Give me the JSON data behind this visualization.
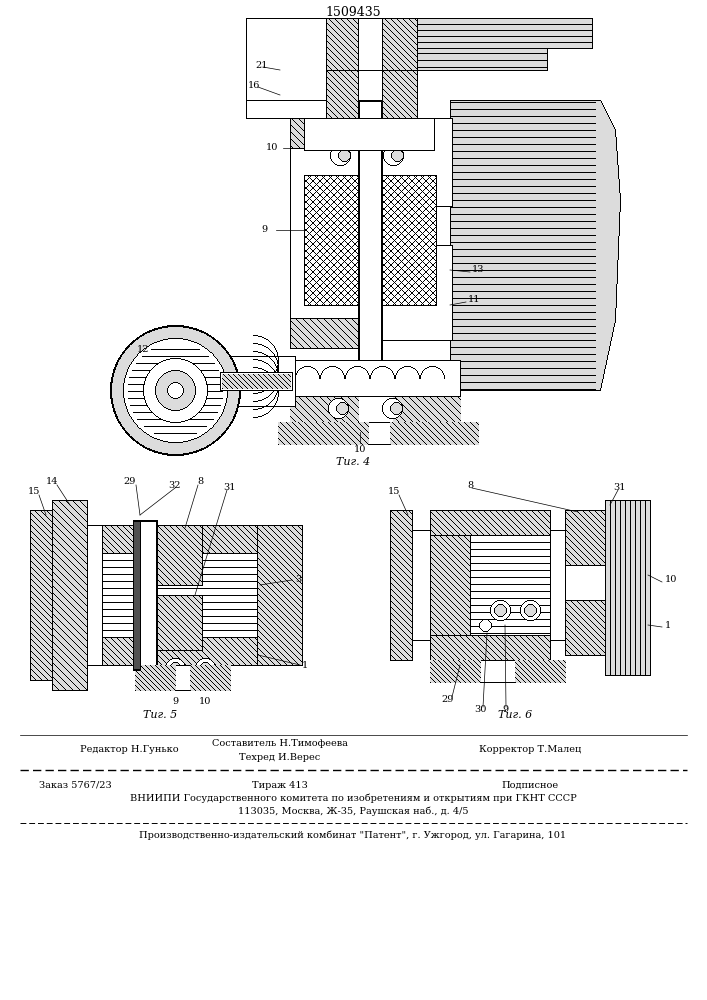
{
  "patent_number": "1509435",
  "fig4_label": "Τиг. 4",
  "fig5_label": "Τиг. 5",
  "fig6_label": "Τиг. 6",
  "editor_line": "Редактор Н.Гунько",
  "composer_line": "Составитель Н.Тимофеева",
  "techred_line": "Техред И.Верес",
  "corrector_line": "Корректор Т.Малец",
  "order_line": "Заказ 5767/23",
  "tirazh_line": "Тираж 413",
  "podpisnoe_line": "Подписное",
  "vniip_line": "ВНИИПИ Государственного комитета по изобретениям и открытиям при ГКНТ СССР",
  "address_line": "113035, Москва, Ж-35, Раушская наб., д. 4/5",
  "publisher_line": "Производственно-издательский комбинат \"Патент\", г. Ужгород, ул. Гагарина, 101"
}
